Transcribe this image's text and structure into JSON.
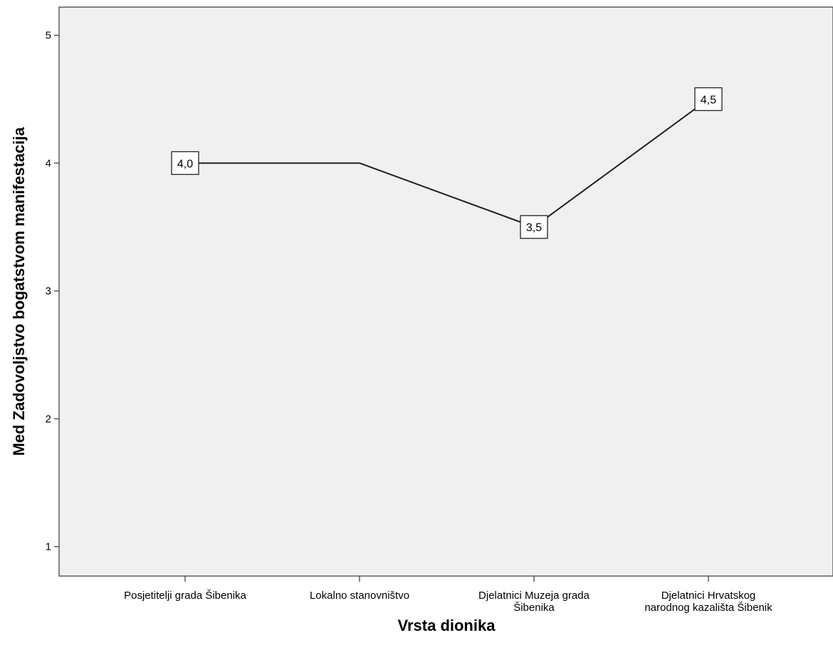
{
  "chart_data": {
    "type": "line",
    "title": "",
    "xlabel": "Vrsta dionika",
    "ylabel": "Med Zadovoljstvo bogatstvom manifestacija",
    "categories": [
      [
        "Posjetitelji grada Šibenika"
      ],
      [
        "Lokalno stanovništvo"
      ],
      [
        "Djelatnici Muzeja grada",
        "Šibenika"
      ],
      [
        "Djelatnici Hrvatskog",
        "narodnog kazališta Šibenik"
      ]
    ],
    "values": [
      4.0,
      4.0,
      3.5,
      4.5
    ],
    "data_labels": [
      "4,0",
      "",
      "3,5",
      "4,5"
    ],
    "yticks": [
      "1",
      "2",
      "3",
      "4",
      "5"
    ],
    "ylim": [
      0.77,
      5.22
    ],
    "grid": false,
    "legend": "none",
    "colors": {
      "plot_background": "#f0f0f0",
      "line": "#1f1f1f",
      "label_box_fill": "#ffffff"
    }
  }
}
